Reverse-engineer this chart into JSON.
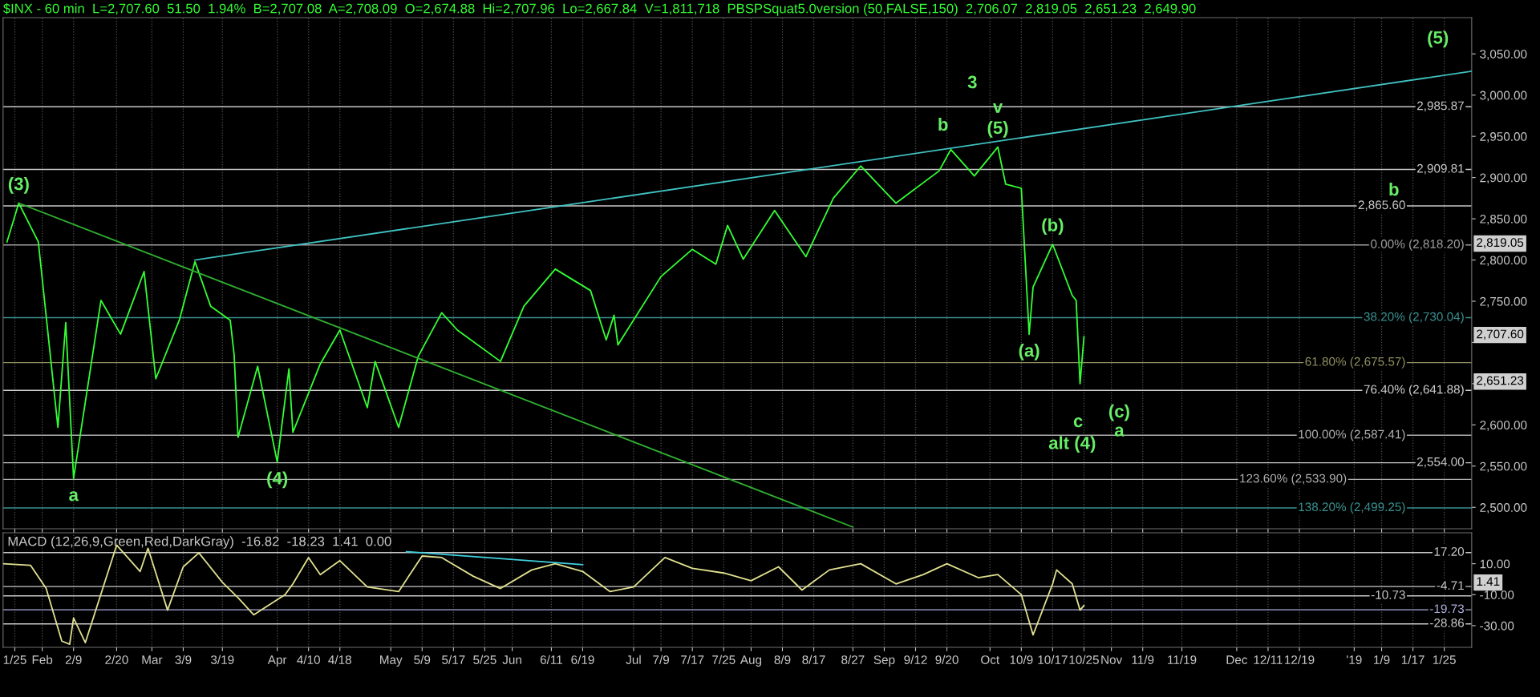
{
  "chart_data": [
    {
      "type": "line",
      "title": "$INX - 60 min  L=2,707.60  51.50  1.94%  B=2,707.08  A=2,708.09  O=2,674.88  Hi=2,707.96  Lo=2,667.84  V=1,811,718  PBSPSquat5.0version (50,FALSE,150)  2,706.07  2,819.05  2,651.23  2,649.90",
      "series": [
        {
          "color": "#33ff33",
          "x": [
            "2018-01-23",
            "2018-01-26",
            "2018-01-31",
            "2018-02-05",
            "2018-02-07",
            "2018-02-09",
            "2018-02-16",
            "2018-02-21",
            "2018-02-27",
            "2018-03-02",
            "2018-03-08",
            "2018-03-12",
            "2018-03-16",
            "2018-03-21",
            "2018-03-22",
            "2018-03-23",
            "2018-03-28",
            "2018-04-02",
            "2018-04-05",
            "2018-04-06",
            "2018-04-13",
            "2018-04-18",
            "2018-04-25",
            "2018-04-27",
            "2018-05-03",
            "2018-05-08",
            "2018-05-14",
            "2018-05-18",
            "2018-05-29",
            "2018-06-04",
            "2018-06-12",
            "2018-06-21",
            "2018-06-25",
            "2018-06-27",
            "2018-06-28",
            "2018-07-09",
            "2018-07-17",
            "2018-07-23",
            "2018-07-26",
            "2018-07-30",
            "2018-08-07",
            "2018-08-15",
            "2018-08-22",
            "2018-08-29",
            "2018-09-07",
            "2018-09-18",
            "2018-09-21",
            "2018-09-27",
            "2018-10-03",
            "2018-10-05",
            "2018-10-09",
            "2018-10-11",
            "2018-10-12",
            "2018-10-17",
            "2018-10-22",
            "2018-10-23",
            "2018-10-24",
            "2018-10-25"
          ],
          "values": [
            2822,
            2869,
            2822,
            2597,
            2724,
            2535,
            2751,
            2710,
            2786,
            2656,
            2727,
            2798,
            2744,
            2727,
            2685,
            2585,
            2671,
            2555,
            2668,
            2591,
            2674,
            2715,
            2621,
            2677,
            2597,
            2683,
            2736,
            2715,
            2677,
            2744,
            2789,
            2763,
            2703,
            2733,
            2697,
            2780,
            2813,
            2795,
            2842,
            2801,
            2860,
            2804,
            2875,
            2914,
            2869,
            2908,
            2934,
            2902,
            2937,
            2892,
            2887,
            2710,
            2767,
            2819,
            2757,
            2751,
            2650,
            2707
          ]
        },
        {
          "type": "line",
          "color": "#40c0c0",
          "x": [
            "2018-03-12",
            "2019-02-01"
          ],
          "values": [
            2800,
            3029
          ]
        },
        {
          "type": "line",
          "color": "#30b030",
          "x": [
            "2018-01-26",
            "2018-08-27"
          ],
          "values": [
            2869,
            2476
          ]
        }
      ],
      "xlim": [
        "2018-01-22",
        "2019-02-01"
      ],
      "xticks": [
        "2018-01-25",
        "2018-02-01",
        "2018-02-09",
        "2018-02-20",
        "2018-03-01",
        "2018-03-09",
        "2018-03-19",
        "2018-04-02",
        "2018-04-10",
        "2018-04-18",
        "2018-05-01",
        "2018-05-09",
        "2018-05-17",
        "2018-05-25",
        "2018-06-01",
        "2018-06-11",
        "2018-06-19",
        "2018-07-02",
        "2018-07-09",
        "2018-07-17",
        "2018-07-25",
        "2018-08-01",
        "2018-08-09",
        "2018-08-17",
        "2018-08-27",
        "2018-09-04",
        "2018-09-12",
        "2018-09-20",
        "2018-10-01",
        "2018-10-09",
        "2018-10-17",
        "2018-10-25",
        "2018-11-01",
        "2018-11-09",
        "2018-11-19",
        "2018-12-03",
        "2018-12-11",
        "2018-12-19",
        "2019-01-02",
        "2019-01-09",
        "2019-01-17",
        "2019-01-25"
      ],
      "ylim": [
        2474,
        3094
      ],
      "yticks": [
        {
          "value": 2500,
          "label": "2,500.00"
        },
        {
          "value": 2550,
          "label": "2,550.00"
        },
        {
          "value": 2600,
          "label": "2,600.00"
        },
        {
          "value": 2650,
          "label": null
        },
        {
          "value": 2700,
          "label": null
        },
        {
          "value": 2750,
          "label": "2,750.00"
        },
        {
          "value": 2800,
          "label": "2,800.00"
        },
        {
          "value": 2850,
          "label": "2,850.00"
        },
        {
          "value": 2900,
          "label": "2,900.00"
        },
        {
          "value": 2950,
          "label": "2,950.00"
        },
        {
          "value": 3000,
          "label": "3,000.00"
        },
        {
          "value": 3050,
          "label": "3,050.00"
        }
      ],
      "tick_labels": "y",
      "grid": "x",
      "ref_lines": [
        {
          "axis": "y",
          "value": 2985.87,
          "label": "2,985.87",
          "color": "#c8c8c8"
        },
        {
          "axis": "y",
          "value": 2909.81,
          "label": "2,909.81",
          "color": "#c8c8c8"
        },
        {
          "axis": "y",
          "value": 2865.6,
          "label": "2,865.60",
          "color": "#c8c8c8"
        },
        {
          "axis": "y",
          "value": 2818.2,
          "label": "0.00% (2,818.20)",
          "color": "#a0a0a0"
        },
        {
          "axis": "y",
          "value": 2730.04,
          "label": "38.20% (2,730.04)",
          "color": "#3a9090"
        },
        {
          "axis": "y",
          "value": 2675.57,
          "label": "61.80% (2,675.57)",
          "color": "#909060"
        },
        {
          "axis": "y",
          "value": 2641.88,
          "label": "76.40% (2,641.88)",
          "color": "#d0d0d0"
        },
        {
          "axis": "y",
          "value": 2587.41,
          "label": "100.00% (2,587.41)",
          "color": "#b0b0b0"
        },
        {
          "axis": "y",
          "value": 2554.0,
          "label": "2,554.00",
          "color": "#c8c8c8"
        },
        {
          "axis": "y",
          "value": 2533.9,
          "label": "123.60% (2,533.90)",
          "color": "#b0b0b0"
        },
        {
          "axis": "y",
          "value": 2499.25,
          "label": "138.20% (2,499.25)",
          "color": "#3a9090"
        }
      ],
      "annotations": [
        {
          "text": "(3)",
          "x": "2018-01-26",
          "y": 2869
        },
        {
          "text": "a",
          "x": "2018-02-09",
          "y": 2535
        },
        {
          "text": "(4)",
          "x": "2018-04-02",
          "y": 2555
        },
        {
          "text": "(5)",
          "x": "2018-10-03",
          "y": 2937
        },
        {
          "text": "v",
          "x": "2018-10-03",
          "y": 2937
        },
        "3",
        {
          "text": "(a)",
          "x": "2018-10-11",
          "y": 2710
        },
        {
          "text": "(b)",
          "x": "2018-10-17",
          "y": 2819
        },
        "b",
        "(c)",
        "c",
        "a",
        "alt (4)",
        "b",
        "(5)",
        "2,819.05",
        "2,707.60",
        "2,651.23"
      ]
    },
    {
      "type": "line",
      "title": "MACD (12,26,9,Green,Red,DarkGray)  -16.82  -18.23  1.41  0.00",
      "series": [
        {
          "color": "#e0e090",
          "x": [
            "2018-01-22",
            "2018-01-29",
            "2018-02-02",
            "2018-02-06",
            "2018-02-08",
            "2018-02-09",
            "2018-02-12",
            "2018-02-20",
            "2018-02-26",
            "2018-02-28",
            "2018-03-05",
            "2018-03-09",
            "2018-03-13",
            "2018-03-19",
            "2018-03-23",
            "2018-03-27",
            "2018-04-04",
            "2018-04-06",
            "2018-04-10",
            "2018-04-13",
            "2018-04-18",
            "2018-04-25",
            "2018-05-03",
            "2018-05-09",
            "2018-05-14",
            "2018-05-22",
            "2018-05-29",
            "2018-06-06",
            "2018-06-12",
            "2018-06-19",
            "2018-06-26",
            "2018-07-02",
            "2018-07-10",
            "2018-07-17",
            "2018-07-25",
            "2018-08-01",
            "2018-08-08",
            "2018-08-14",
            "2018-08-21",
            "2018-08-29",
            "2018-09-07",
            "2018-09-14",
            "2018-09-20",
            "2018-09-28",
            "2018-10-03",
            "2018-10-09",
            "2018-10-12",
            "2018-10-17",
            "2018-10-18",
            "2018-10-22",
            "2018-10-24",
            "2018-10-25"
          ],
          "values": [
            10,
            9,
            -6,
            -40,
            -42,
            -25,
            -41,
            22,
            5,
            20,
            -20,
            8,
            17,
            -2,
            -12,
            -23,
            -10,
            -3,
            14,
            3,
            12,
            -5,
            -8,
            15,
            14,
            2,
            -6,
            6,
            10,
            5,
            -8,
            -5,
            14,
            7,
            4,
            -1,
            8,
            -7,
            6,
            10,
            -3,
            3,
            10,
            1,
            3,
            -10,
            -36,
            -3,
            6,
            -3,
            -20,
            -17
          ]
        },
        {
          "type": "line",
          "color": "#40d0e0",
          "x": [
            "2018-05-05",
            "2018-06-19"
          ],
          "values": [
            17.8,
            9.4
          ]
        }
      ],
      "xlim": [
        "2018-01-22",
        "2019-02-01"
      ],
      "xticks": [
        {
          "value": "2018-01-25",
          "label": "1/25"
        },
        {
          "value": "2018-02-01",
          "label": "Feb"
        },
        {
          "value": "2018-02-09",
          "label": "2/9"
        },
        {
          "value": "2018-02-20",
          "label": "2/20"
        },
        {
          "value": "2018-03-01",
          "label": "Mar"
        },
        {
          "value": "2018-03-09",
          "label": "3/9"
        },
        {
          "value": "2018-03-19",
          "label": "3/19"
        },
        {
          "value": "2018-04-02",
          "label": "Apr"
        },
        {
          "value": "2018-04-10",
          "label": "4/10"
        },
        {
          "value": "2018-04-18",
          "label": "4/18"
        },
        {
          "value": "2018-05-01",
          "label": "May"
        },
        {
          "value": "2018-05-09",
          "label": "5/9"
        },
        {
          "value": "2018-05-17",
          "label": "5/17"
        },
        {
          "value": "2018-05-25",
          "label": "5/25"
        },
        {
          "value": "2018-06-01",
          "label": "Jun"
        },
        {
          "value": "2018-06-11",
          "label": "6/11"
        },
        {
          "value": "2018-06-19",
          "label": "6/19"
        },
        {
          "value": "2018-07-02",
          "label": "Jul"
        },
        {
          "value": "2018-07-09",
          "label": "7/9"
        },
        {
          "value": "2018-07-17",
          "label": "7/17"
        },
        {
          "value": "2018-07-25",
          "label": "7/25"
        },
        {
          "value": "2018-08-01",
          "label": "Aug"
        },
        {
          "value": "2018-08-09",
          "label": "8/9"
        },
        {
          "value": "2018-08-17",
          "label": "8/17"
        },
        {
          "value": "2018-08-27",
          "label": "8/27"
        },
        {
          "value": "2018-09-04",
          "label": "Sep"
        },
        {
          "value": "2018-09-12",
          "label": "9/12"
        },
        {
          "value": "2018-09-20",
          "label": "9/20"
        },
        {
          "value": "2018-10-01",
          "label": "Oct"
        },
        {
          "value": "2018-10-09",
          "label": "10/9"
        },
        {
          "value": "2018-10-17",
          "label": "10/17"
        },
        {
          "value": "2018-10-25",
          "label": "10/25"
        },
        {
          "value": "2018-11-01",
          "label": "Nov"
        },
        {
          "value": "2018-11-09",
          "label": "11/9"
        },
        {
          "value": "2018-11-19",
          "label": "11/19"
        },
        {
          "value": "2018-12-03",
          "label": "Dec"
        },
        {
          "value": "2018-12-11",
          "label": "12/11"
        },
        {
          "value": "2018-12-19",
          "label": "12/19"
        },
        {
          "value": "2019-01-02",
          "label": "'19"
        },
        {
          "value": "2019-01-09",
          "label": "1/9"
        },
        {
          "value": "2019-01-17",
          "label": "1/17"
        },
        {
          "value": "2019-01-25",
          "label": "1/25"
        }
      ],
      "ylim": [
        -44,
        30
      ],
      "yticks": [
        {
          "value": 10,
          "label": "10.00"
        },
        {
          "value": -10,
          "label": "-10.00"
        },
        {
          "value": -30,
          "label": "-30.00"
        }
      ],
      "grid": "x",
      "ref_lines": [
        {
          "axis": "y",
          "value": 17.2,
          "label": "17.20",
          "color": "#c8c8c8"
        },
        {
          "axis": "y",
          "value": -4.71,
          "label": "-4.71",
          "color": "#c8c8c8"
        },
        {
          "axis": "y",
          "value": -10.73,
          "label": "-10.73",
          "color": "#c8c8c8"
        },
        {
          "axis": "y",
          "value": -19.73,
          "label": "-19.73",
          "color": "#b0b0e0"
        },
        {
          "axis": "y",
          "value": -28.86,
          "label": "-28.86",
          "color": "#c8c8c8"
        }
      ],
      "annotations": [
        "1.41"
      ]
    }
  ]
}
